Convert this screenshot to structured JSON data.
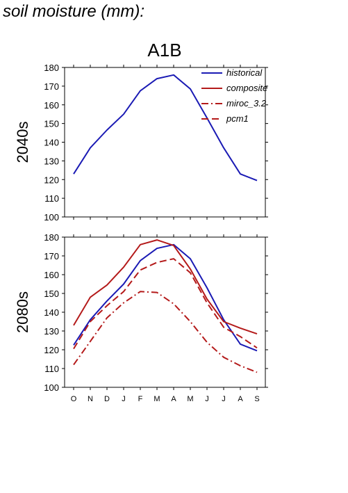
{
  "page_title": "soil moisture (mm):",
  "chart_data": {
    "type": "line",
    "scenario": "A1B",
    "categories": [
      "O",
      "N",
      "D",
      "J",
      "F",
      "M",
      "A",
      "M",
      "J",
      "J",
      "A",
      "S"
    ],
    "legend": [
      "historical",
      "composite",
      "miroc_3.2",
      "pcm1"
    ],
    "colors": {
      "historical": "#1a1ab4",
      "composite": "#b41a1a",
      "miroc_3.2": "#b41a1a",
      "pcm1": "#b41a1a"
    },
    "legend_position": "top-right",
    "panels": [
      {
        "label": "2040s",
        "ylim": [
          100,
          180
        ],
        "yticks": [
          "100",
          "110",
          "120",
          "130",
          "140",
          "150",
          "160",
          "170",
          "180"
        ],
        "series": [
          {
            "name": "historical",
            "values": [
              123,
              137,
              146.5,
              155,
              167.5,
              174,
              176,
              168.5,
              153,
              137,
              123,
              119.5
            ]
          }
        ]
      },
      {
        "label": "2080s",
        "ylim": [
          100,
          180
        ],
        "yticks": [
          "100",
          "110",
          "120",
          "130",
          "140",
          "150",
          "160",
          "170",
          "180"
        ],
        "series": [
          {
            "name": "historical",
            "values": [
              122.5,
              136,
              146,
              155,
              167.5,
              174,
              176,
              168.5,
              153,
              136,
              123,
              119.5
            ]
          },
          {
            "name": "composite",
            "values": [
              133,
              148,
              154.5,
              164,
              176,
              178.5,
              175.5,
              163,
              147,
              135,
              131.5,
              128.5
            ]
          },
          {
            "name": "miroc_3.2",
            "values": [
              112,
              124.5,
              137,
              145,
              151,
              150.5,
              144.5,
              135,
              124,
              116,
              111.5,
              108
            ]
          },
          {
            "name": "pcm1",
            "values": [
              120.5,
              135,
              143.5,
              151,
              162.5,
              166.5,
              168.5,
              161,
              145,
              132,
              127,
              121
            ]
          }
        ]
      }
    ]
  }
}
